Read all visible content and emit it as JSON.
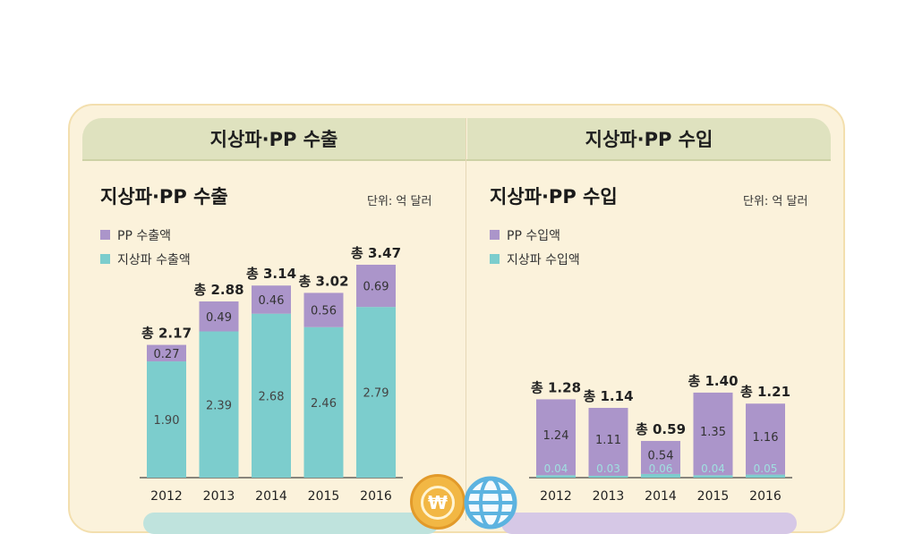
{
  "tabs": {
    "export": "지상파·PP 수출",
    "import": "지상파·PP 수입"
  },
  "colors": {
    "pp": "#ab95ca",
    "terrestrial": "#7ccdcd",
    "tab": "#dfe2bf",
    "card": "#fbf2db"
  },
  "icons": [
    "won-coin-icon",
    "globe-icon"
  ],
  "chart_data": [
    {
      "type": "bar",
      "stacked": true,
      "title": "지상파·PP 수출",
      "unit": "단위: 억 달러",
      "categories": [
        "2012",
        "2013",
        "2014",
        "2015",
        "2016"
      ],
      "series": [
        {
          "name": "지상파 수출액",
          "values": [
            1.9,
            2.39,
            2.68,
            2.46,
            2.79
          ],
          "labels": [
            "1.90",
            "2.39",
            "2.68",
            "2.46",
            "2.79"
          ]
        },
        {
          "name": "PP 수출액",
          "values": [
            0.27,
            0.49,
            0.46,
            0.56,
            0.69
          ],
          "labels": [
            "0.27",
            "0.49",
            "0.46",
            "0.56",
            "0.69"
          ]
        }
      ],
      "totals": [
        "총 2.17",
        "총 2.88",
        "총 3.14",
        "총 3.02",
        "총 3.47"
      ],
      "legend": [
        "PP 수출액",
        "지상파 수출액"
      ]
    },
    {
      "type": "bar",
      "stacked": true,
      "title": "지상파·PP 수입",
      "unit": "단위: 억 달러",
      "categories": [
        "2012",
        "2013",
        "2014",
        "2015",
        "2016"
      ],
      "series": [
        {
          "name": "지상파 수입액",
          "values": [
            0.04,
            0.03,
            0.06,
            0.04,
            0.05
          ],
          "labels": [
            "0.04",
            "0.03",
            "0.06",
            "0.04",
            "0.05"
          ]
        },
        {
          "name": "PP 수입액",
          "values": [
            1.24,
            1.11,
            0.54,
            1.35,
            1.16
          ],
          "labels": [
            "1.24",
            "1.11",
            "0.54",
            "1.35",
            "1.16"
          ]
        }
      ],
      "totals": [
        "총 1.28",
        "총 1.14",
        "총 0.59",
        "총 1.40",
        "총 1.21"
      ],
      "legend": [
        "PP 수입액",
        "지상파 수입액"
      ]
    }
  ]
}
